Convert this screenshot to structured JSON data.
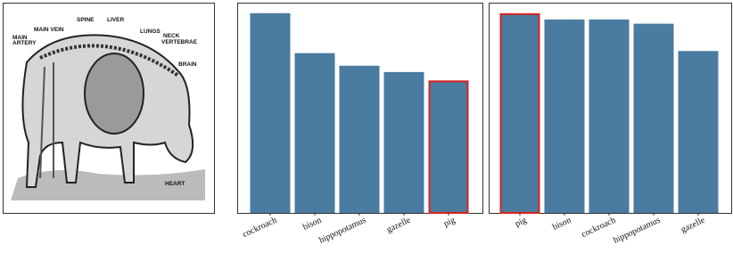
{
  "image": {
    "labels": [
      "SPINE",
      "LIVER",
      "MAIN VEIN",
      "LUNGS",
      [
        "MAIN",
        "ARTERY"
      ],
      [
        "NECK",
        "VERTEBRAE"
      ],
      "BRAIN",
      "HEART"
    ]
  },
  "chart_data": [
    {
      "type": "bar",
      "categories": [
        "cockroach",
        "bison",
        "hippopotamus",
        "gazelle",
        "pig"
      ],
      "values": [
        0.95,
        0.76,
        0.7,
        0.67,
        0.63
      ],
      "ylim": [
        0,
        1
      ],
      "color": "#4a7ba0",
      "edgecolors": [
        "#4a7ba0",
        "#4a7ba0",
        "#4a7ba0",
        "#4a7ba0",
        "#d9231f"
      ]
    },
    {
      "type": "bar",
      "categories": [
        "pig",
        "bison",
        "cockroach",
        "hippopotamus",
        "gazelle"
      ],
      "values": [
        0.95,
        0.92,
        0.92,
        0.9,
        0.77
      ],
      "ylim": [
        0,
        1
      ],
      "color": "#4a7ba0",
      "edgecolors": [
        "#d9231f",
        "#4a7ba0",
        "#4a7ba0",
        "#4a7ba0",
        "#4a7ba0"
      ]
    }
  ]
}
